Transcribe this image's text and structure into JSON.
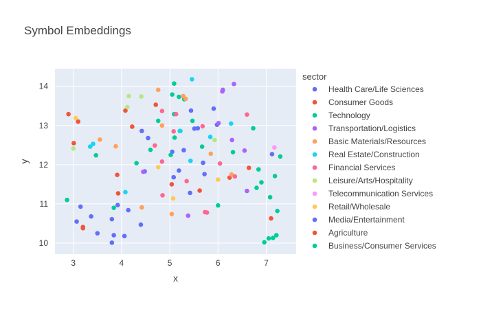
{
  "chart_data": {
    "type": "scatter",
    "title": "Symbol Embeddings",
    "xlabel": "x",
    "ylabel": "y",
    "xlim": [
      2.62,
      7.62
    ],
    "ylim": [
      9.72,
      14.45
    ],
    "xticks": [
      3,
      4,
      5,
      6,
      7
    ],
    "yticks": [
      10,
      11,
      12,
      13,
      14
    ],
    "grid": true,
    "plot_bgcolor": "#e5ecf6",
    "legend_title": "sector",
    "legend_position": "right",
    "series": [
      {
        "name": "Health Care/Life Sciences",
        "color": "#636efa",
        "x": [
          3.07,
          3.15,
          3.37,
          3.5,
          3.8,
          3.8,
          3.84,
          3.92,
          4.06,
          4.14,
          4.4,
          4.42,
          4.48,
          4.55,
          5.05,
          5.08,
          5.19,
          5.29,
          5.42,
          5.44,
          5.58,
          5.69,
          5.72,
          5.91,
          5.98,
          7.12
        ],
        "y": [
          10.55,
          10.93,
          10.68,
          10.25,
          10.01,
          10.61,
          10.2,
          10.97,
          10.18,
          10.84,
          10.47,
          12.86,
          11.83,
          12.68,
          12.33,
          11.68,
          11.85,
          12.37,
          11.28,
          13.38,
          12.93,
          12.05,
          11.76,
          13.43,
          13.02,
          12.27
        ]
      },
      {
        "name": "Consumer Goods",
        "color": "#EF553B",
        "x": [
          2.9,
          3.01,
          3.1,
          3.2,
          3.91,
          4.08,
          4.22,
          4.71,
          5.04,
          5.62,
          6.24,
          6.64
        ],
        "y": [
          13.29,
          12.55,
          13.1,
          10.38,
          11.74,
          13.38,
          12.97,
          13.53,
          11.5,
          11.34,
          11.67,
          11.92
        ]
      },
      {
        "name": "Technology",
        "color": "#00cc96",
        "x": [
          2.87,
          3.47,
          3.84,
          4.31,
          4.6,
          4.76,
          5.02,
          5.05,
          5.09,
          5.1,
          5.09,
          5.21,
          5.3,
          5.47,
          5.67,
          6.0,
          6.31,
          6.73,
          6.8,
          6.9,
          6.96,
          7.05,
          7.08,
          7.14,
          7.18,
          7.21,
          7.23,
          7.29
        ],
        "y": [
          11.1,
          12.24,
          10.9,
          12.04,
          12.38,
          13.12,
          12.25,
          13.79,
          14.07,
          12.69,
          13.29,
          12.86,
          13.67,
          13.12,
          12.46,
          10.96,
          12.32,
          12.93,
          11.41,
          11.55,
          10.02,
          10.12,
          11.17,
          10.13,
          11.71,
          10.2,
          10.82,
          12.21
        ]
      },
      {
        "name": "Transportation/Logistics",
        "color": "#ab63fa",
        "x": [
          4.45,
          5.38,
          6.01,
          6.09,
          6.1,
          6.29,
          6.33,
          6.55,
          6.6
        ],
        "y": [
          11.82,
          10.7,
          13.06,
          13.87,
          13.91,
          12.63,
          14.06,
          12.36,
          11.33
        ]
      },
      {
        "name": "Basic Materials/Resources",
        "color": "#FFA15A",
        "x": [
          3.55,
          3.88,
          4.42,
          4.76,
          4.84,
          5.04,
          5.28,
          5.33,
          5.85,
          6.28
        ],
        "y": [
          12.64,
          12.47,
          10.91,
          13.91,
          13.0,
          10.74,
          13.75,
          13.68,
          12.28,
          11.75
        ]
      },
      {
        "name": "Real Estate/Construction",
        "color": "#19d3f3",
        "x": [
          3.35,
          3.41,
          4.08,
          5.22,
          5.43,
          5.46,
          5.84,
          6.27
        ],
        "y": [
          12.46,
          12.53,
          11.3,
          12.86,
          12.1,
          14.18,
          12.71,
          13.05
        ]
      },
      {
        "name": "Financial Services",
        "color": "#FF6692",
        "x": [
          4.69,
          4.84,
          4.84,
          4.85,
          5.08,
          5.13,
          5.35,
          5.68,
          5.73,
          5.77,
          6.04,
          6.35,
          6.6
        ],
        "y": [
          12.49,
          13.37,
          12.08,
          11.22,
          12.85,
          13.29,
          11.58,
          12.98,
          10.79,
          10.78,
          12.03,
          11.7,
          13.28
        ]
      },
      {
        "name": "Leisure/Arts/Hospitality",
        "color": "#B6E880",
        "x": [
          3.0,
          4.12,
          4.15,
          4.41,
          5.93
        ],
        "y": [
          12.41,
          13.47,
          13.75,
          13.74,
          12.63
        ]
      },
      {
        "name": "Telecommunication Services",
        "color": "#FF97FF",
        "x": [
          7.17
        ],
        "y": [
          12.44
        ]
      },
      {
        "name": "Retail/Wholesale",
        "color": "#FECB52",
        "x": [
          3.05,
          4.76,
          5.07,
          6.0
        ],
        "y": [
          13.19,
          11.94,
          11.14,
          11.62
        ]
      },
      {
        "name": "Media/Entertainment",
        "color": "#636efa",
        "x": [
          5.51
        ],
        "y": [
          12.92
        ]
      },
      {
        "name": "Agriculture",
        "color": "#EF553B",
        "x": [
          3.2,
          3.93,
          7.1
        ],
        "y": [
          10.41,
          11.27,
          10.63
        ]
      },
      {
        "name": "Business/Consumer Services",
        "color": "#00cc96",
        "x": [
          5.19,
          6.84
        ],
        "y": [
          13.73,
          11.88
        ]
      }
    ]
  }
}
